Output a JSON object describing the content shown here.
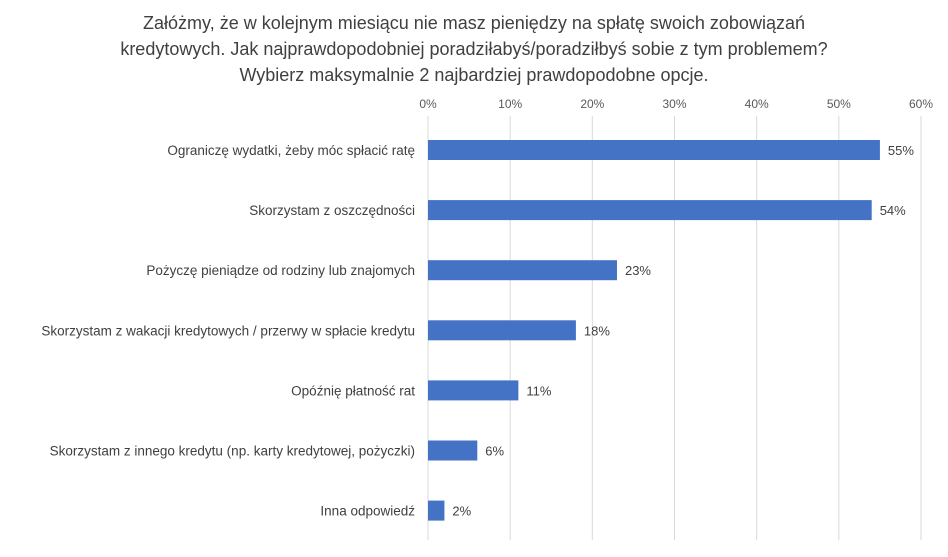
{
  "chart_data": {
    "type": "bar",
    "orientation": "horizontal",
    "title_lines": [
      "Załóżmy, że w kolejnym miesiącu nie masz pieniędzy na spłatę swoich zobowiązań",
      "kredytowych. Jak najprawdopodobniej  poradziłabyś/poradziłbyś  sobie z tym problemem?",
      "Wybierz maksymalnie 2 najbardziej prawdopodobne  opcje."
    ],
    "categories": [
      "Ograniczę wydatki, żeby móc spłacić ratę",
      "Skorzystam z oszczędności",
      "Pożyczę pieniądze od rodziny lub znajomych",
      "Skorzystam z wakacji kredytowych / przerwy w spłacie kredytu",
      "Opóźnię płatność rat",
      "Skorzystam z innego kredytu (np. karty kredytowej, pożyczki)",
      "Inna odpowiedź"
    ],
    "values": [
      55,
      54,
      23,
      18,
      11,
      6,
      2
    ],
    "data_labels": [
      "55%",
      "54%",
      "23%",
      "18%",
      "11%",
      "6%",
      "2%"
    ],
    "x_ticks": [
      "0%",
      "10%",
      "20%",
      "30%",
      "40%",
      "50%",
      "60%"
    ],
    "xlim": [
      0,
      60
    ],
    "axis_position": "top",
    "grid": true,
    "legend": "none",
    "bar_color": "#4472c4"
  }
}
